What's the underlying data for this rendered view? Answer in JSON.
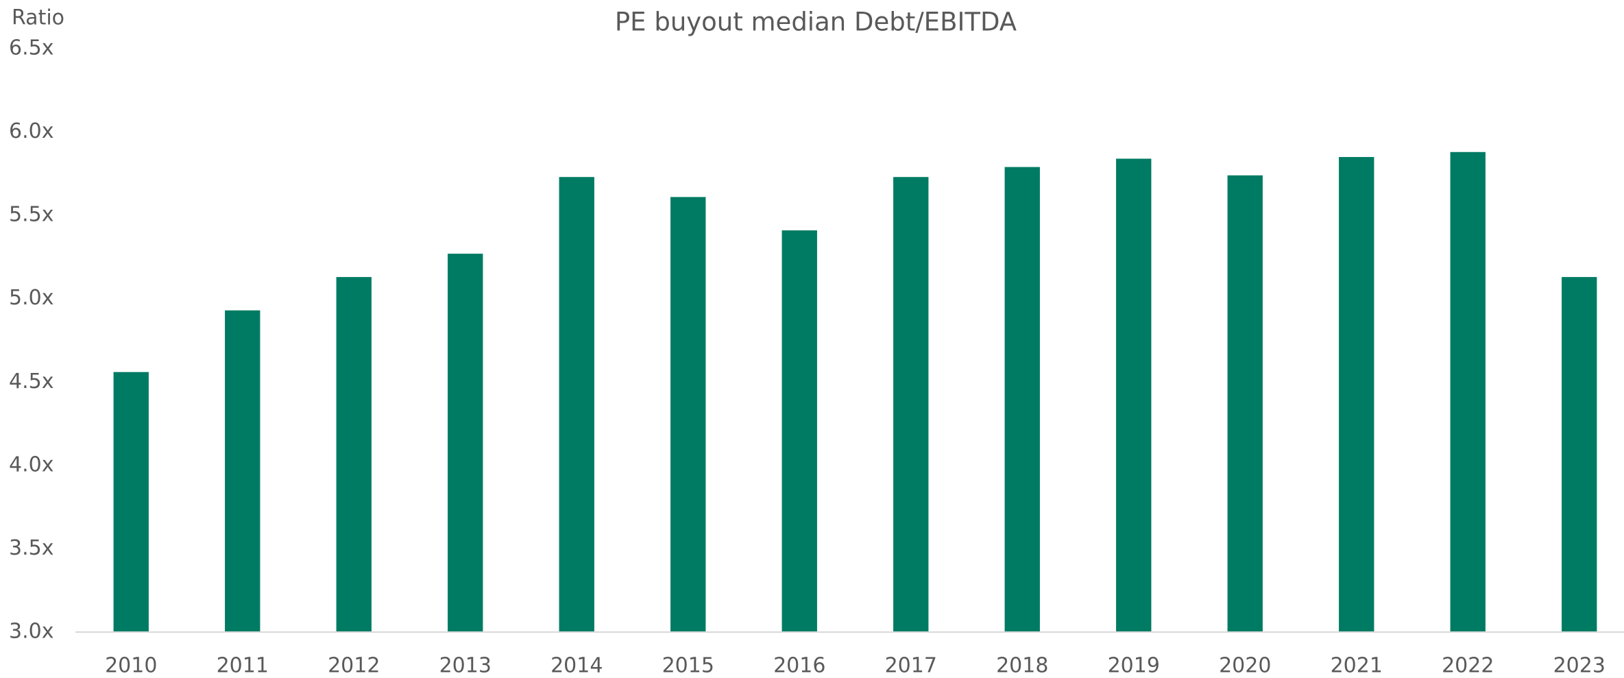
{
  "chart_data": {
    "type": "bar",
    "title": "PE buyout median Debt/EBITDA",
    "y_label": "Ratio",
    "categories": [
      "2010",
      "2011",
      "2012",
      "2013",
      "2014",
      "2015",
      "2016",
      "2017",
      "2018",
      "2019",
      "2020",
      "2021",
      "2022",
      "2023"
    ],
    "values": [
      4.56,
      4.93,
      5.13,
      5.27,
      5.73,
      5.61,
      5.41,
      5.73,
      5.79,
      5.84,
      5.74,
      5.85,
      5.88,
      5.13
    ],
    "color": "#007b63",
    "ylim": [
      3.0,
      6.5
    ],
    "yticks": [
      {
        "value": 3.0,
        "label": "3.0x"
      },
      {
        "value": 3.5,
        "label": "3.5x"
      },
      {
        "value": 4.0,
        "label": "4.0x"
      },
      {
        "value": 4.5,
        "label": "4.5x"
      },
      {
        "value": 5.0,
        "label": "5.0x"
      },
      {
        "value": 5.5,
        "label": "5.5x"
      },
      {
        "value": 6.0,
        "label": "6.0x"
      },
      {
        "value": 6.5,
        "label": "6.5x"
      }
    ],
    "grid": false
  }
}
